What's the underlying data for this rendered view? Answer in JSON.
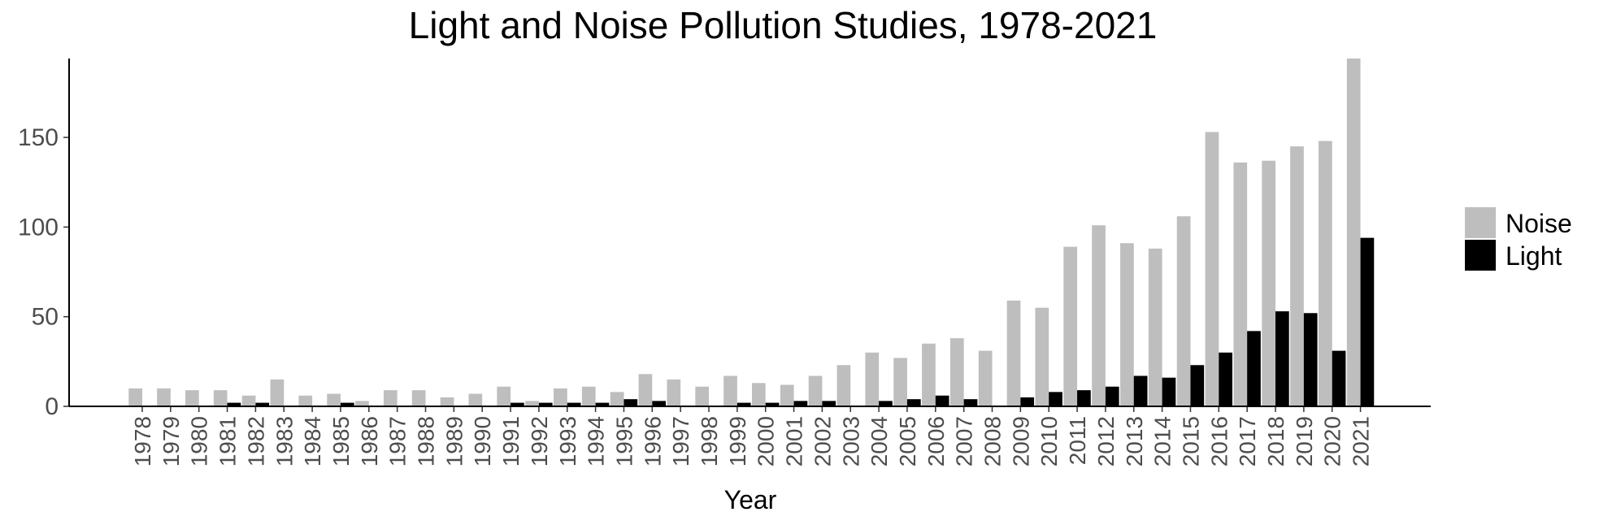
{
  "chart_data": {
    "type": "bar",
    "title": "Light and Noise Pollution Studies, 1978-2021",
    "xlabel": "Year",
    "ylabel": "",
    "ylim": [
      0,
      194
    ],
    "yticks": [
      0,
      50,
      100,
      150
    ],
    "grid": false,
    "legend_position": "right",
    "categories": [
      "1978",
      "1979",
      "1980",
      "1981",
      "1982",
      "1983",
      "1984",
      "1985",
      "1986",
      "1987",
      "1988",
      "1989",
      "1990",
      "1991",
      "1992",
      "1993",
      "1994",
      "1995",
      "1996",
      "1997",
      "1998",
      "1999",
      "2000",
      "2001",
      "2002",
      "2003",
      "2004",
      "2005",
      "2006",
      "2007",
      "2008",
      "2009",
      "2010",
      "2011",
      "2012",
      "2013",
      "2014",
      "2015",
      "2016",
      "2017",
      "2018",
      "2019",
      "2020",
      "2021"
    ],
    "series": [
      {
        "name": "Noise",
        "color": "#bebebe",
        "values": [
          10,
          10,
          9,
          9,
          6,
          15,
          6,
          7,
          3,
          9,
          9,
          5,
          7,
          11,
          3,
          10,
          11,
          8,
          18,
          15,
          11,
          17,
          13,
          12,
          17,
          23,
          30,
          27,
          35,
          38,
          31,
          59,
          55,
          89,
          101,
          91,
          88,
          106,
          153,
          136,
          137,
          145,
          148,
          194
        ]
      },
      {
        "name": "Light",
        "color": "#000000",
        "values": [
          0,
          0,
          0,
          2,
          2,
          0,
          0,
          2,
          0,
          0,
          0,
          0,
          0,
          2,
          2,
          2,
          2,
          4,
          3,
          0,
          0,
          2,
          2,
          3,
          3,
          0,
          3,
          4,
          6,
          4,
          0,
          5,
          8,
          9,
          11,
          17,
          16,
          23,
          30,
          42,
          53,
          52,
          31,
          94
        ]
      }
    ]
  }
}
